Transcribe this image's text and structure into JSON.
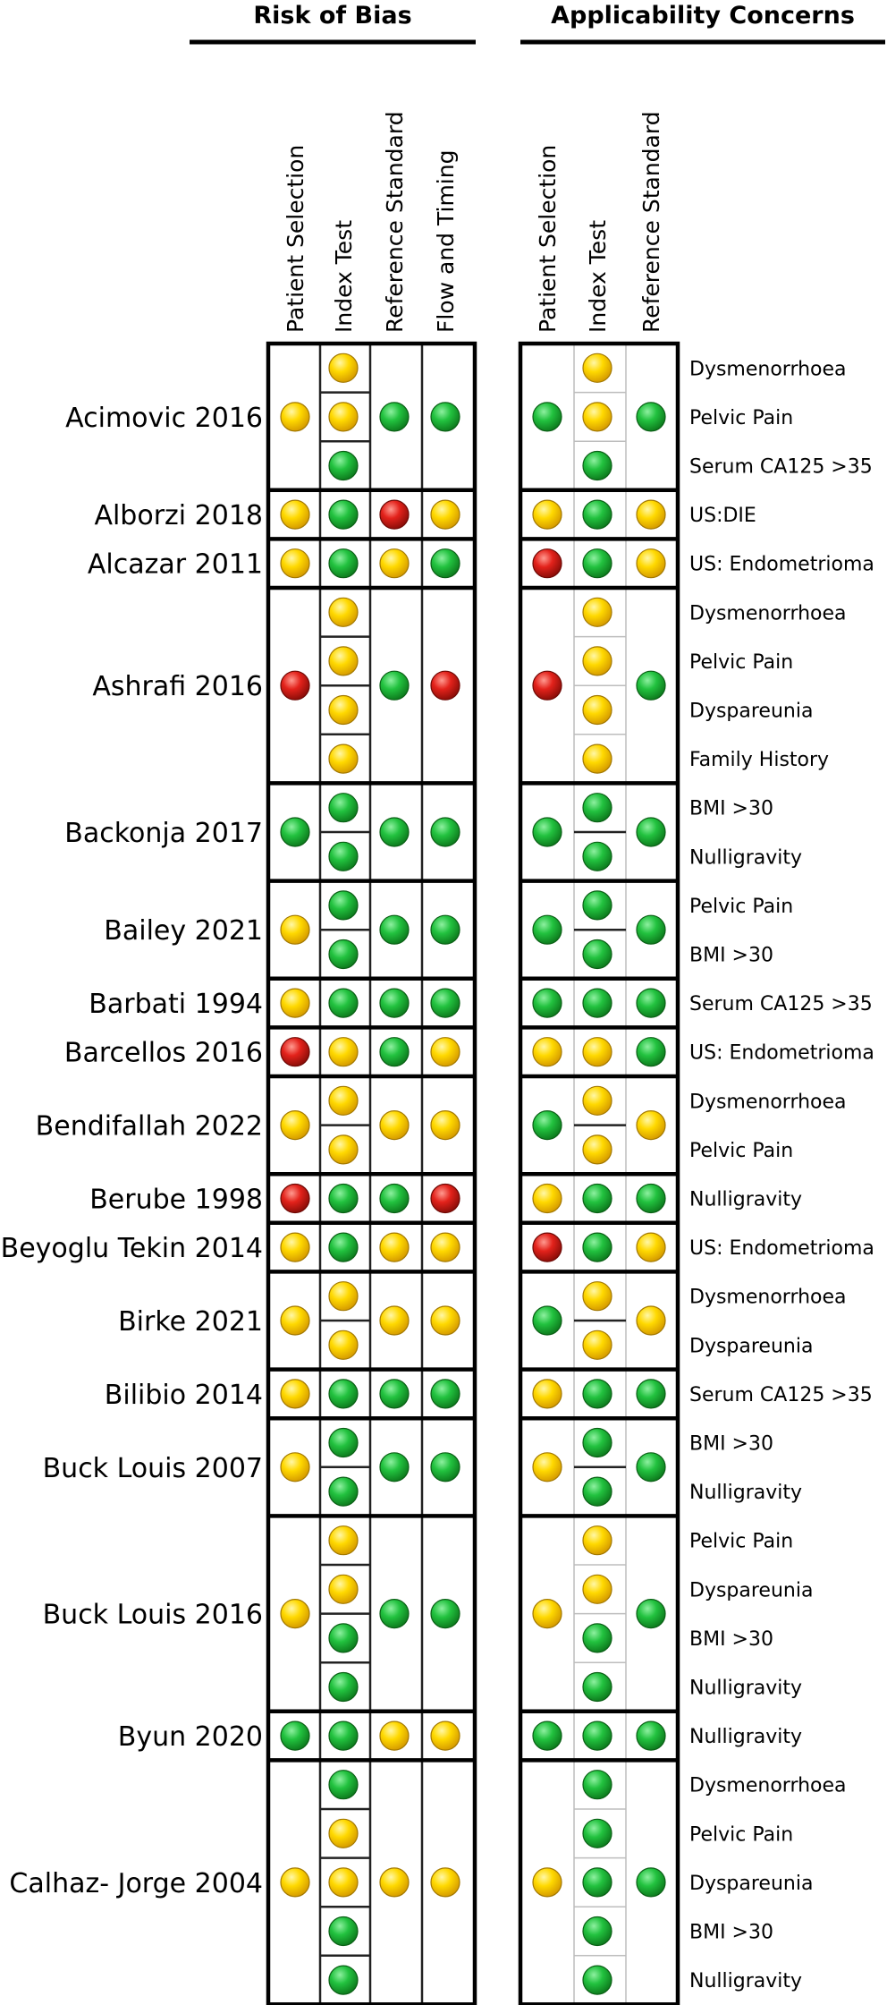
{
  "chart_data": {
    "type": "table",
    "groups": [
      {
        "title": "Risk of Bias",
        "columns": [
          "Patient Selection",
          "Index Test",
          "Reference Standard",
          "Flow and Timing"
        ]
      },
      {
        "title": "Applicability Concerns",
        "columns": [
          "Patient Selection",
          "Index Test",
          "Reference Standard"
        ]
      }
    ],
    "rating_colors": {
      "low": "#22b14c",
      "unclear": "#ffd700",
      "high": "#e0201b"
    },
    "studies": [
      {
        "name": "Acimovic 2016",
        "factors": [
          "Dysmenorrhoea",
          "Pelvic Pain",
          "Serum CA125 >35"
        ],
        "rob": {
          "patient_selection": "unclear",
          "index_test": [
            "unclear",
            "unclear",
            "low"
          ],
          "reference_standard": "low",
          "flow_timing": "low"
        },
        "applicability": {
          "patient_selection": "low",
          "index_test": [
            "unclear",
            "unclear",
            "low"
          ],
          "reference_standard": "low"
        }
      },
      {
        "name": "Alborzi 2018",
        "factors": [
          "US:DIE"
        ],
        "rob": {
          "patient_selection": "unclear",
          "index_test": [
            "low"
          ],
          "reference_standard": "high",
          "flow_timing": "unclear"
        },
        "applicability": {
          "patient_selection": "unclear",
          "index_test": [
            "low"
          ],
          "reference_standard": "unclear"
        }
      },
      {
        "name": "Alcazar 2011",
        "factors": [
          "US: Endometrioma"
        ],
        "rob": {
          "patient_selection": "unclear",
          "index_test": [
            "low"
          ],
          "reference_standard": "unclear",
          "flow_timing": "low"
        },
        "applicability": {
          "patient_selection": "high",
          "index_test": [
            "low"
          ],
          "reference_standard": "unclear"
        }
      },
      {
        "name": "Ashrafi 2016",
        "factors": [
          "Dysmenorrhoea",
          "Pelvic Pain",
          "Dyspareunia",
          "Family History"
        ],
        "rob": {
          "patient_selection": "high",
          "index_test": [
            "unclear",
            "unclear",
            "unclear",
            "unclear"
          ],
          "reference_standard": "low",
          "flow_timing": "high"
        },
        "applicability": {
          "patient_selection": "high",
          "index_test": [
            "unclear",
            "unclear",
            "unclear",
            "unclear"
          ],
          "reference_standard": "low"
        }
      },
      {
        "name": "Backonja 2017",
        "factors": [
          "BMI >30",
          "Nulligravity"
        ],
        "rob": {
          "patient_selection": "low",
          "index_test": [
            "low",
            "low"
          ],
          "reference_standard": "low",
          "flow_timing": "low"
        },
        "applicability": {
          "patient_selection": "low",
          "index_test": [
            "low",
            "low"
          ],
          "reference_standard": "low"
        }
      },
      {
        "name": "Bailey 2021",
        "factors": [
          "Pelvic Pain",
          "BMI >30"
        ],
        "rob": {
          "patient_selection": "unclear",
          "index_test": [
            "low",
            "low"
          ],
          "reference_standard": "low",
          "flow_timing": "low"
        },
        "applicability": {
          "patient_selection": "low",
          "index_test": [
            "low",
            "low"
          ],
          "reference_standard": "low"
        }
      },
      {
        "name": "Barbati 1994",
        "factors": [
          "Serum CA125 >35"
        ],
        "rob": {
          "patient_selection": "unclear",
          "index_test": [
            "low"
          ],
          "reference_standard": "low",
          "flow_timing": "low"
        },
        "applicability": {
          "patient_selection": "low",
          "index_test": [
            "low"
          ],
          "reference_standard": "low"
        }
      },
      {
        "name": "Barcellos 2016",
        "factors": [
          "US: Endometrioma"
        ],
        "rob": {
          "patient_selection": "high",
          "index_test": [
            "unclear"
          ],
          "reference_standard": "low",
          "flow_timing": "unclear"
        },
        "applicability": {
          "patient_selection": "unclear",
          "index_test": [
            "unclear"
          ],
          "reference_standard": "low"
        }
      },
      {
        "name": "Bendifallah 2022",
        "factors": [
          "Dysmenorrhoea",
          "Pelvic Pain"
        ],
        "rob": {
          "patient_selection": "unclear",
          "index_test": [
            "unclear",
            "unclear"
          ],
          "reference_standard": "unclear",
          "flow_timing": "unclear"
        },
        "applicability": {
          "patient_selection": "low",
          "index_test": [
            "unclear",
            "unclear"
          ],
          "reference_standard": "unclear"
        }
      },
      {
        "name": "Berube 1998",
        "factors": [
          "Nulligravity"
        ],
        "rob": {
          "patient_selection": "high",
          "index_test": [
            "low"
          ],
          "reference_standard": "low",
          "flow_timing": "high"
        },
        "applicability": {
          "patient_selection": "unclear",
          "index_test": [
            "low"
          ],
          "reference_standard": "low"
        }
      },
      {
        "name": "Beyoglu Tekin 2014",
        "factors": [
          "US: Endometrioma"
        ],
        "rob": {
          "patient_selection": "unclear",
          "index_test": [
            "low"
          ],
          "reference_standard": "unclear",
          "flow_timing": "unclear"
        },
        "applicability": {
          "patient_selection": "high",
          "index_test": [
            "low"
          ],
          "reference_standard": "unclear"
        }
      },
      {
        "name": "Birke 2021",
        "factors": [
          "Dysmenorrhoea",
          "Dyspareunia"
        ],
        "rob": {
          "patient_selection": "unclear",
          "index_test": [
            "unclear",
            "unclear"
          ],
          "reference_standard": "unclear",
          "flow_timing": "unclear"
        },
        "applicability": {
          "patient_selection": "low",
          "index_test": [
            "unclear",
            "unclear"
          ],
          "reference_standard": "unclear"
        }
      },
      {
        "name": "Bilibio 2014",
        "factors": [
          "Serum CA125 >35"
        ],
        "rob": {
          "patient_selection": "unclear",
          "index_test": [
            "low"
          ],
          "reference_standard": "low",
          "flow_timing": "low"
        },
        "applicability": {
          "patient_selection": "unclear",
          "index_test": [
            "low"
          ],
          "reference_standard": "low"
        }
      },
      {
        "name": "Buck Louis  2007",
        "factors": [
          "BMI >30",
          "Nulligravity"
        ],
        "rob": {
          "patient_selection": "unclear",
          "index_test": [
            "low",
            "low"
          ],
          "reference_standard": "low",
          "flow_timing": "low"
        },
        "applicability": {
          "patient_selection": "unclear",
          "index_test": [
            "low",
            "low"
          ],
          "reference_standard": "low"
        }
      },
      {
        "name": "Buck Louis  2016",
        "factors": [
          "Pelvic Pain",
          "Dyspareunia",
          "BMI >30",
          "Nulligravity"
        ],
        "rob": {
          "patient_selection": "unclear",
          "index_test": [
            "unclear",
            "unclear",
            "low",
            "low"
          ],
          "reference_standard": "low",
          "flow_timing": "low"
        },
        "applicability": {
          "patient_selection": "unclear",
          "index_test": [
            "unclear",
            "unclear",
            "low",
            "low"
          ],
          "reference_standard": "low"
        }
      },
      {
        "name": "Byun 2020",
        "factors": [
          "Nulligravity"
        ],
        "rob": {
          "patient_selection": "low",
          "index_test": [
            "low"
          ],
          "reference_standard": "unclear",
          "flow_timing": "unclear"
        },
        "applicability": {
          "patient_selection": "low",
          "index_test": [
            "low"
          ],
          "reference_standard": "low"
        }
      },
      {
        "name": "Calhaz- Jorge 2004",
        "factors": [
          "Dysmenorrhoea",
          "Pelvic Pain",
          "Dyspareunia",
          "BMI >30",
          "Nulligravity"
        ],
        "rob": {
          "patient_selection": "unclear",
          "index_test": [
            "low",
            "unclear",
            "unclear",
            "low",
            "low"
          ],
          "reference_standard": "unclear",
          "flow_timing": "unclear"
        },
        "applicability": {
          "patient_selection": "unclear",
          "index_test": [
            "low",
            "low",
            "low",
            "low",
            "low"
          ],
          "reference_standard": "low"
        }
      }
    ]
  }
}
